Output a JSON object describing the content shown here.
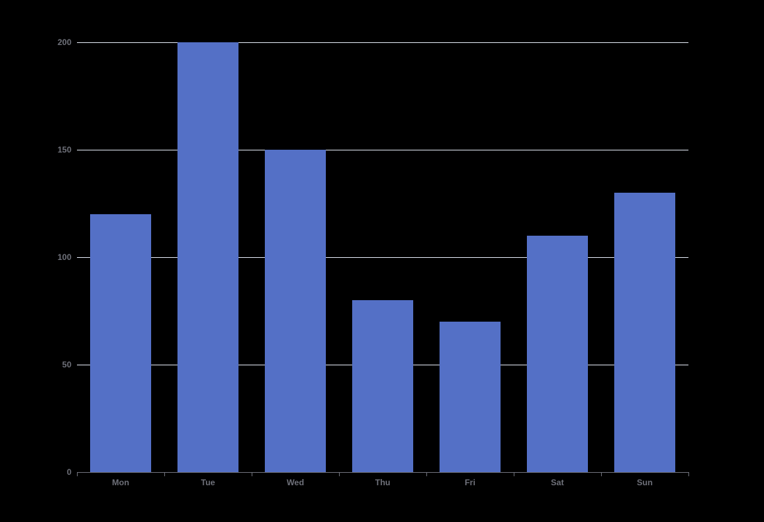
{
  "chart_data": {
    "type": "bar",
    "title": "",
    "categories": [
      "Mon",
      "Tue",
      "Wed",
      "Thu",
      "Fri",
      "Sat",
      "Sun"
    ],
    "values": [
      120,
      200,
      150,
      80,
      70,
      110,
      130
    ],
    "xlabel": "",
    "ylabel": "",
    "ylim": [
      0,
      200
    ],
    "yticks": [
      0,
      50,
      100,
      150,
      200
    ],
    "grid": true,
    "legend": false,
    "colors": {
      "background": "#000000",
      "bar": "#5470C6",
      "gridline": "#E0E6F1",
      "axis": "#6E7079",
      "label": "#6E7079"
    }
  }
}
